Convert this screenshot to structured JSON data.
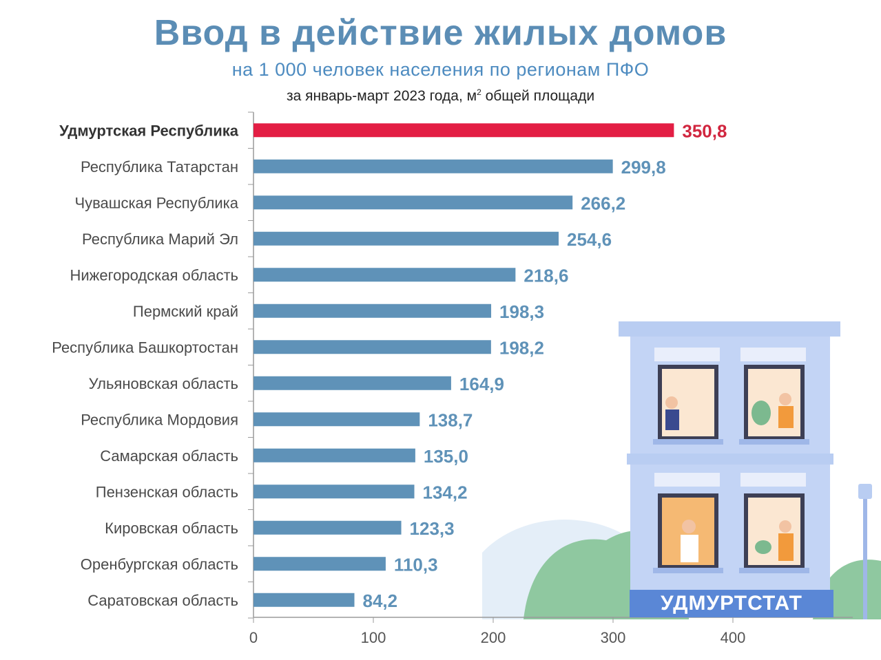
{
  "title": "Ввод в действие жилых домов",
  "subtitle": "на 1 000 человек населения по регионам ПФО",
  "period_text": "за январь-март 2023 года, м",
  "period_sup": "2",
  "period_tail": " общей площади",
  "brand": "УДМУРТСТАТ",
  "colors": {
    "highlight": "#e31e44",
    "bar": "#5f92b8",
    "highlight_label": "#d1263f",
    "value_label": "#5f92b8"
  },
  "chart_data": {
    "type": "bar",
    "orientation": "horizontal",
    "categories": [
      "Удмуртская Республика",
      "Республика Татарстан",
      "Чувашская Республика",
      "Республика  Марий Эл",
      "Нижегородская область",
      "Пермский край",
      "Республика Башкортостан",
      "Ульяновская область",
      "Республика Мордовия",
      "Самарская область",
      "Пензенская область",
      "Кировская область",
      "Оренбургская область",
      "Саратовская область"
    ],
    "values": [
      350.8,
      299.8,
      266.2,
      254.6,
      218.6,
      198.3,
      198.2,
      164.9,
      138.7,
      135.0,
      134.2,
      123.3,
      110.3,
      84.2
    ],
    "value_labels": [
      "350,8",
      "299,8",
      "266,2",
      "254,6",
      "218,6",
      "198,3",
      "198,2",
      "164,9",
      "138,7",
      "135,0",
      "134,2",
      "123,3",
      "110,3",
      "84,2"
    ],
    "highlight_index": 0,
    "xlim": [
      0,
      500
    ],
    "xticks": [
      0,
      100,
      200,
      300,
      400
    ],
    "xtick_labels": [
      "0",
      "100",
      "200",
      "300",
      "400"
    ],
    "grid": false
  }
}
